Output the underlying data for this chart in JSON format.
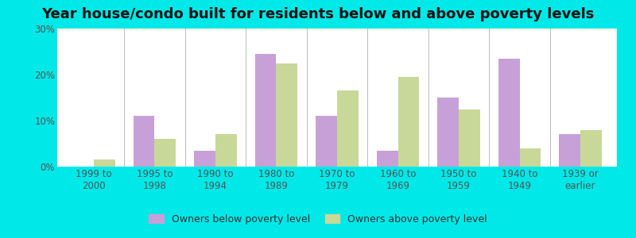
{
  "title": "Year house/condo built for residents below and above poverty levels",
  "categories": [
    "1999 to\n2000",
    "1995 to\n1998",
    "1990 to\n1994",
    "1980 to\n1989",
    "1970 to\n1979",
    "1960 to\n1969",
    "1950 to\n1959",
    "1940 to\n1949",
    "1939 or\nearlier"
  ],
  "below_poverty": [
    0.0,
    11.0,
    3.5,
    24.5,
    11.0,
    3.5,
    15.0,
    23.5,
    7.0
  ],
  "above_poverty": [
    1.5,
    6.0,
    7.0,
    22.5,
    16.5,
    19.5,
    12.5,
    4.0,
    8.0
  ],
  "below_color": "#c8a0d8",
  "above_color": "#c8d898",
  "ylim": [
    0,
    30
  ],
  "yticks": [
    0,
    10,
    20,
    30
  ],
  "ytick_labels": [
    "0%",
    "10%",
    "20%",
    "30%"
  ],
  "outer_bg": "#00e8e8",
  "legend_below": "Owners below poverty level",
  "legend_above": "Owners above poverty level",
  "title_fontsize": 13,
  "tick_fontsize": 8.5
}
